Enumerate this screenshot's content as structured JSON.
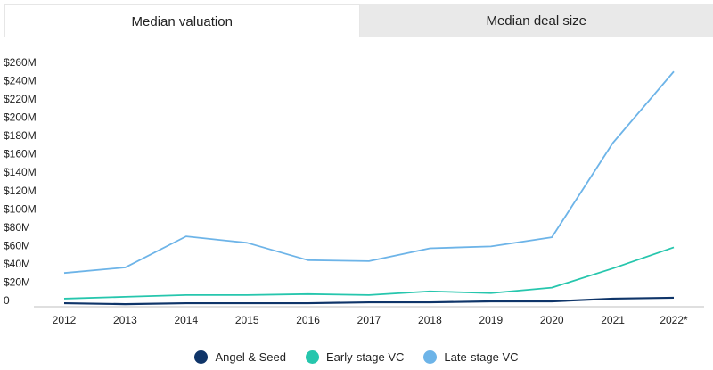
{
  "tabs": [
    {
      "label": "Median valuation",
      "active": true
    },
    {
      "label": "Median deal size",
      "active": false
    }
  ],
  "chart_data": {
    "type": "line",
    "categories": [
      "2012",
      "2013",
      "2014",
      "2015",
      "2016",
      "2017",
      "2018",
      "2019",
      "2020",
      "2021",
      "2022*"
    ],
    "y_ticks": [
      "0",
      "$20M",
      "$40M",
      "$60M",
      "$80M",
      "$100M",
      "$120M",
      "$140M",
      "$160M",
      "$180M",
      "$200M",
      "$220M",
      "$240M",
      "$260M"
    ],
    "ylim": [
      0,
      260
    ],
    "grid": false,
    "legend_position": "bottom-center",
    "series": [
      {
        "name": "Angel & Seed",
        "color": "#0f3569",
        "values": [
          -3,
          -4,
          -3,
          -3,
          -3,
          -2,
          -2,
          -1,
          -1,
          2,
          3
        ]
      },
      {
        "name": "Early-stage VC",
        "color": "#26c6ad",
        "values": [
          2,
          4,
          6,
          6,
          7,
          6,
          10,
          8,
          14,
          35,
          58
        ]
      },
      {
        "name": "Late-stage VC",
        "color": "#6db4e8",
        "values": [
          30,
          36,
          70,
          63,
          44,
          43,
          57,
          59,
          69,
          172,
          250
        ]
      }
    ]
  }
}
